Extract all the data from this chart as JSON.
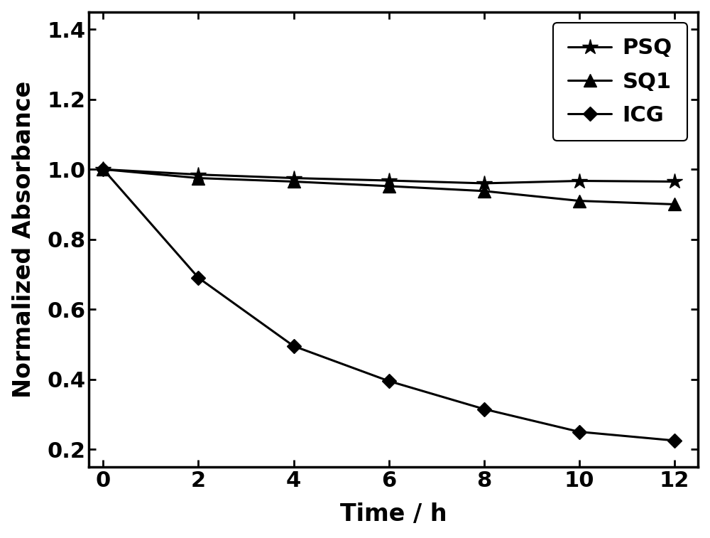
{
  "time": [
    0,
    2,
    4,
    6,
    8,
    10,
    12
  ],
  "PSQ": [
    1.0,
    0.985,
    0.975,
    0.968,
    0.96,
    0.967,
    0.965
  ],
  "SQ1": [
    1.0,
    0.975,
    0.965,
    0.952,
    0.938,
    0.91,
    0.9
  ],
  "ICG": [
    1.0,
    0.69,
    0.495,
    0.395,
    0.315,
    0.25,
    0.225
  ],
  "xlabel": "Time / h",
  "ylabel": "Normalized Absorbance",
  "xlim": [
    -0.3,
    12.5
  ],
  "ylim": [
    0.15,
    1.45
  ],
  "yticks": [
    0.2,
    0.4,
    0.6,
    0.8,
    1.0,
    1.2,
    1.4
  ],
  "xticks": [
    0,
    2,
    4,
    6,
    8,
    10,
    12
  ],
  "line_color": "#000000",
  "linewidth": 2.2,
  "markersize_star": 16,
  "markersize_triangle": 13,
  "markersize_diamond": 10,
  "legend_labels": [
    "PSQ",
    "SQ1",
    "ICG"
  ],
  "legend_fontsize": 22,
  "axis_fontsize": 24,
  "tick_fontsize": 22,
  "legend_loc": "upper right"
}
